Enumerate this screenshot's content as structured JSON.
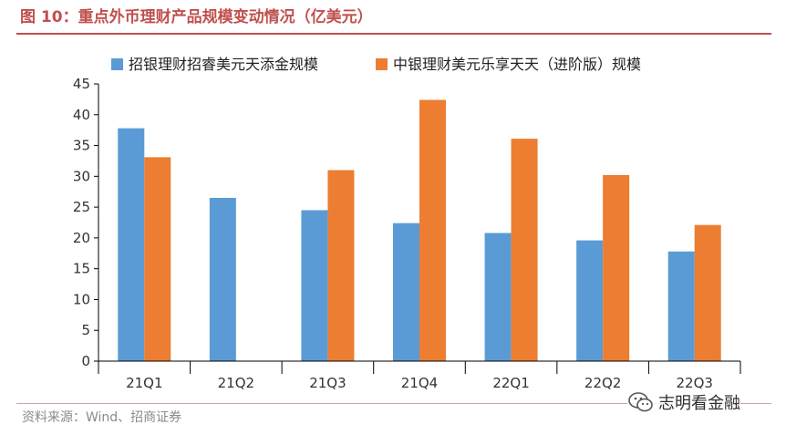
{
  "header": {
    "title": "图 10：重点外币理财产品规模变动情况（亿美元）"
  },
  "footer": {
    "source": "资料来源：Wind、招商证券",
    "watermark_text": "志明看金融"
  },
  "colors": {
    "title": "#c0504d",
    "series_blue": "#5b9bd5",
    "series_orange": "#ed7d31",
    "axis": "#000000"
  },
  "chart_data": {
    "type": "bar",
    "title": "重点外币理财产品规模变动情况（亿美元）",
    "xlabel": "",
    "ylabel": "",
    "categories": [
      "21Q1",
      "21Q2",
      "21Q3",
      "21Q4",
      "22Q1",
      "22Q2",
      "22Q3"
    ],
    "series": [
      {
        "name": "招银理财招睿美元天添金规模",
        "color": "#5b9bd5",
        "values": [
          37.8,
          26.5,
          24.5,
          22.4,
          20.8,
          19.6,
          17.8
        ]
      },
      {
        "name": "中银理财美元乐享天天（进阶版）规模",
        "color": "#ed7d31",
        "values": [
          33.1,
          null,
          31.0,
          42.4,
          36.1,
          30.2,
          22.1
        ]
      }
    ],
    "ylim": [
      0,
      45
    ],
    "yticks": [
      0,
      5,
      10,
      15,
      20,
      25,
      30,
      35,
      40,
      45
    ],
    "grid": false,
    "legend": "top"
  }
}
